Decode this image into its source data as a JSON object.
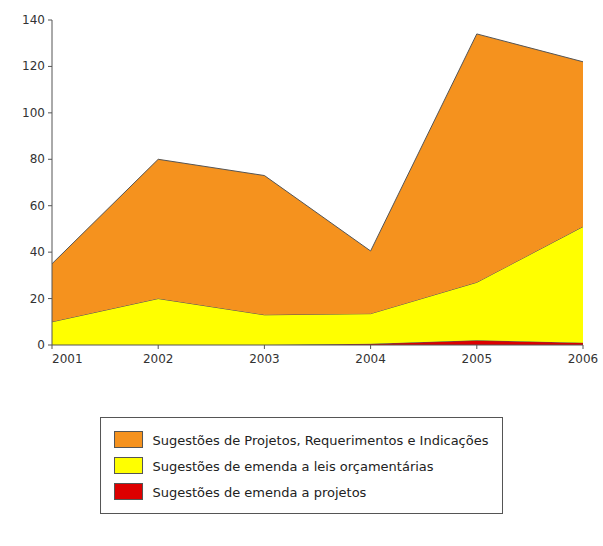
{
  "chart_data": {
    "type": "area",
    "stacked": true,
    "x": [
      2001,
      2002,
      2003,
      2004,
      2005,
      2006
    ],
    "xlim": [
      2001,
      2006
    ],
    "xticks": [
      2001,
      2002,
      2003,
      2004,
      2005,
      2006
    ],
    "ylim": [
      0,
      140
    ],
    "yticks": [
      0,
      20,
      40,
      60,
      80,
      100,
      120,
      140
    ],
    "grid": false,
    "legend": "bottom",
    "series": [
      {
        "name": "Sugestões de emenda a projetos",
        "color": "#DD0000",
        "values": [
          0,
          0,
          0,
          0.5,
          2,
          1
        ]
      },
      {
        "name": "Sugestões de emenda a leis orçamentárias",
        "color": "#FFFF00",
        "values": [
          10,
          20,
          13,
          13,
          25,
          50
        ]
      },
      {
        "name": "Sugestões de Projetos, Requerimentos e Indicações",
        "color": "#F5921E",
        "values": [
          25,
          60,
          60,
          27,
          107,
          71
        ]
      }
    ]
  }
}
